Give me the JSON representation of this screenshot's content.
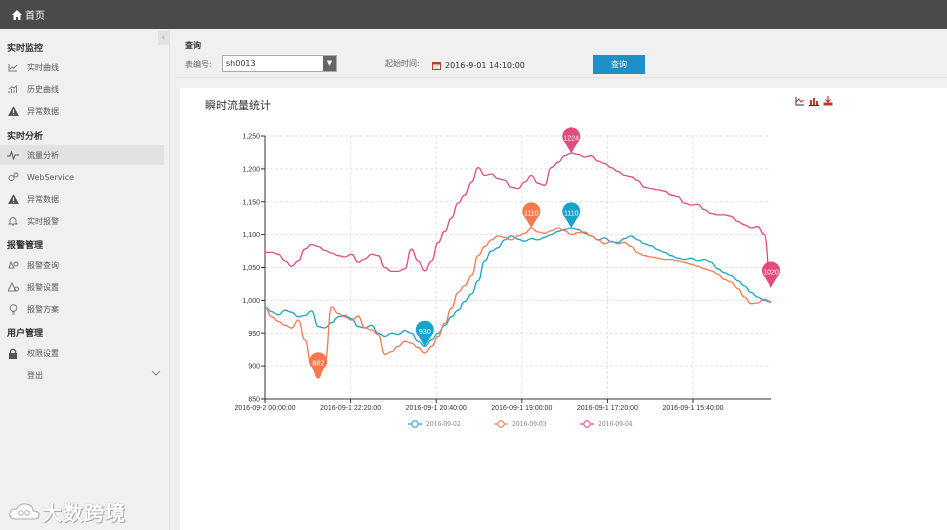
{
  "topbar": {
    "home_label": "首页"
  },
  "sidebar": {
    "sections": [
      {
        "title": "实时监控",
        "items": [
          {
            "label": "实时曲线",
            "icon": "line-chart-icon"
          },
          {
            "label": "历史曲线",
            "icon": "bar-trend-icon"
          },
          {
            "label": "异常数据",
            "icon": "warning-icon"
          }
        ]
      },
      {
        "title": "实时分析",
        "items": [
          {
            "label": "流量分析",
            "icon": "pulse-icon",
            "active": true
          },
          {
            "label": "WebService",
            "icon": "gears-icon"
          },
          {
            "label": "异常数据",
            "icon": "warning-icon"
          },
          {
            "label": "实时报警",
            "icon": "bell-icon"
          }
        ]
      },
      {
        "title": "报警管理",
        "items": [
          {
            "label": "报警查询",
            "icon": "bell-search-icon"
          },
          {
            "label": "报警设置",
            "icon": "alarm-settings-icon"
          },
          {
            "label": "报警方案",
            "icon": "lightbulb-icon"
          }
        ]
      },
      {
        "title": "用户管理",
        "items": [
          {
            "label": "权限设置",
            "icon": "lock-icon"
          },
          {
            "label": "登出",
            "icon": ""
          }
        ]
      }
    ],
    "watermark": "大数跨境"
  },
  "query": {
    "title": "查询",
    "meter_label": "表编号:",
    "meter_value": "sh0013",
    "start_label": "起始时间:",
    "start_value": "2016-9-01 14:10:00",
    "button_label": "查询"
  },
  "chart_data": {
    "type": "line",
    "title": "瞬时流量统计",
    "x_tick_labels": [
      "2016-09-2 00:00:00",
      "2016-09-1 22:20:00",
      "2016-09-1 20:40:00",
      "2016-09-1 19:00:00",
      "2016-09-1 17:20:00",
      "2016-09-1 15:40:00"
    ],
    "ylim": [
      850,
      1250
    ],
    "y_ticks": [
      850,
      900,
      950,
      1000,
      1050,
      1100,
      1150,
      1200,
      1250
    ],
    "grid": true,
    "legend_position": "bottom",
    "series": [
      {
        "name": "2016-09-02",
        "color": "#1aa3c8",
        "values": [
          990,
          983,
          978,
          985,
          982,
          975,
          977,
          984,
          960,
          958,
          966,
          975,
          977,
          972,
          960,
          958,
          962,
          950,
          945,
          950,
          948,
          954,
          950,
          938,
          930,
          940,
          950,
          962,
          975,
          985,
          998,
          1010,
          1030,
          1060,
          1075,
          1080,
          1092,
          1098,
          1093,
          1090,
          1094,
          1092,
          1096,
          1100,
          1105,
          1108,
          1110,
          1108,
          1102,
          1098,
          1092,
          1095,
          1089,
          1088,
          1094,
          1098,
          1092,
          1086,
          1083,
          1077,
          1073,
          1068,
          1064,
          1062,
          1064,
          1060,
          1062,
          1058,
          1048,
          1042,
          1038,
          1030,
          1022,
          1012,
          1005,
          1000,
          997
        ],
        "marker_max": 1110,
        "marker_min": 930
      },
      {
        "name": "2016-09-03",
        "color": "#f27a4e",
        "values": [
          990,
          975,
          968,
          962,
          958,
          970,
          940,
          900,
          882,
          905,
          990,
          980,
          975,
          970,
          976,
          958,
          955,
          948,
          918,
          922,
          930,
          938,
          935,
          928,
          920,
          930,
          945,
          965,
          988,
          1012,
          1022,
          1038,
          1068,
          1082,
          1092,
          1098,
          1096,
          1092,
          1098,
          1102,
          1110,
          1104,
          1102,
          1106,
          1110,
          1106,
          1100,
          1103,
          1104,
          1098,
          1092,
          1086,
          1090,
          1086,
          1088,
          1082,
          1072,
          1068,
          1066,
          1064,
          1062,
          1062,
          1060,
          1058,
          1055,
          1052,
          1048,
          1045,
          1040,
          1032,
          1028,
          1018,
          1005,
          995,
          996,
          1002,
          998
        ],
        "marker_max": 1110,
        "marker_min": 882
      },
      {
        "name": "2016-09-04",
        "color": "#e14c7c",
        "values": [
          1073,
          1073,
          1070,
          1060,
          1052,
          1060,
          1078,
          1085,
          1082,
          1076,
          1072,
          1068,
          1066,
          1070,
          1058,
          1063,
          1070,
          1068,
          1050,
          1044,
          1044,
          1048,
          1078,
          1060,
          1045,
          1060,
          1088,
          1105,
          1125,
          1148,
          1160,
          1180,
          1202,
          1190,
          1192,
          1185,
          1183,
          1172,
          1170,
          1180,
          1190,
          1178,
          1175,
          1202,
          1210,
          1220,
          1224,
          1222,
          1218,
          1220,
          1212,
          1208,
          1202,
          1196,
          1190,
          1188,
          1182,
          1172,
          1170,
          1168,
          1166,
          1160,
          1158,
          1148,
          1145,
          1146,
          1138,
          1132,
          1130,
          1130,
          1128,
          1120,
          1115,
          1110,
          1112,
          1100,
          1020
        ],
        "marker_max": 1224,
        "marker_min": 1020
      }
    ]
  }
}
